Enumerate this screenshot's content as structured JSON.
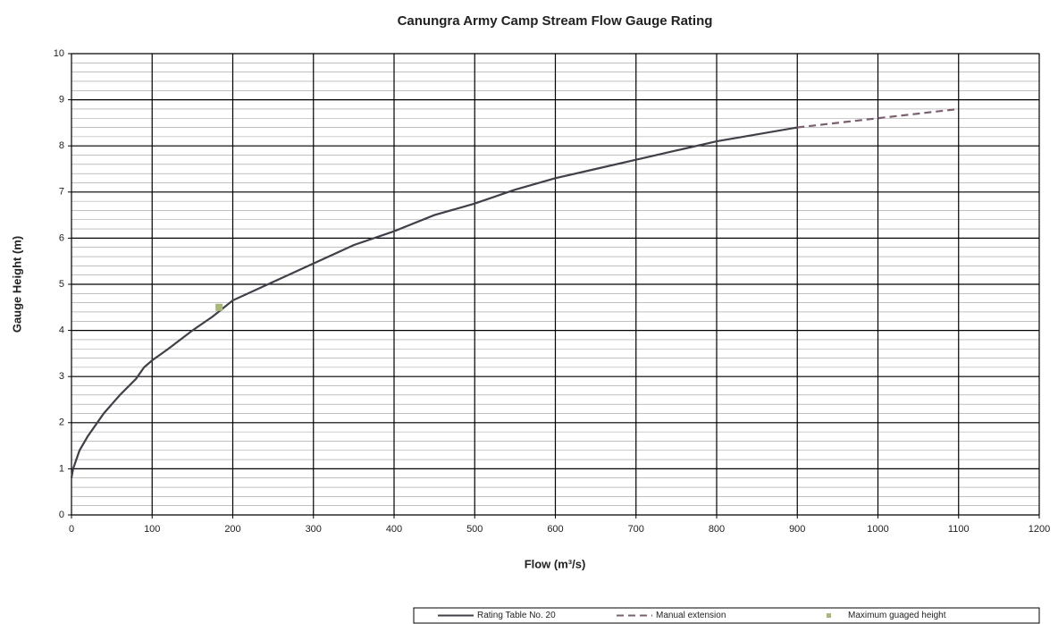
{
  "chart_data": {
    "type": "line",
    "title": "Canungra Army  Camp Stream Flow Gauge Rating",
    "x_label": "Flow (m³/s)",
    "y_label": "Gauge Height (m)",
    "xlim": [
      0,
      1200
    ],
    "ylim": [
      0,
      10
    ],
    "xticks": [
      0,
      100,
      200,
      300,
      400,
      500,
      600,
      700,
      800,
      900,
      1000,
      1100,
      1200
    ],
    "yticks": [
      0,
      1,
      2,
      3,
      4,
      5,
      6,
      7,
      8,
      9,
      10
    ],
    "grid": true,
    "y_minor_step": 0.2,
    "legend": "bottom-right",
    "series": [
      {
        "name": "Rating Table No. 20",
        "color": "#404048",
        "style": "solid",
        "x": [
          0,
          2,
          10,
          20,
          40,
          60,
          80,
          90,
          100,
          120,
          150,
          175,
          200,
          250,
          300,
          350,
          400,
          450,
          500,
          550,
          600,
          650,
          700,
          750,
          800,
          850,
          900
        ],
        "y": [
          0.8,
          1.0,
          1.4,
          1.7,
          2.2,
          2.6,
          2.95,
          3.2,
          3.35,
          3.6,
          4.0,
          4.3,
          4.65,
          5.05,
          5.45,
          5.85,
          6.15,
          6.5,
          6.75,
          7.05,
          7.3,
          7.5,
          7.7,
          7.9,
          8.1,
          8.25,
          8.4
        ]
      },
      {
        "name": "Manual extension",
        "color": "#7a6070",
        "style": "dashed",
        "x": [
          900,
          1000,
          1100
        ],
        "y": [
          8.4,
          8.6,
          8.8
        ]
      },
      {
        "name": "Maximum guaged height",
        "color": "#a8b878",
        "type": "scatter",
        "x": [
          183
        ],
        "y": [
          4.5
        ]
      }
    ]
  }
}
